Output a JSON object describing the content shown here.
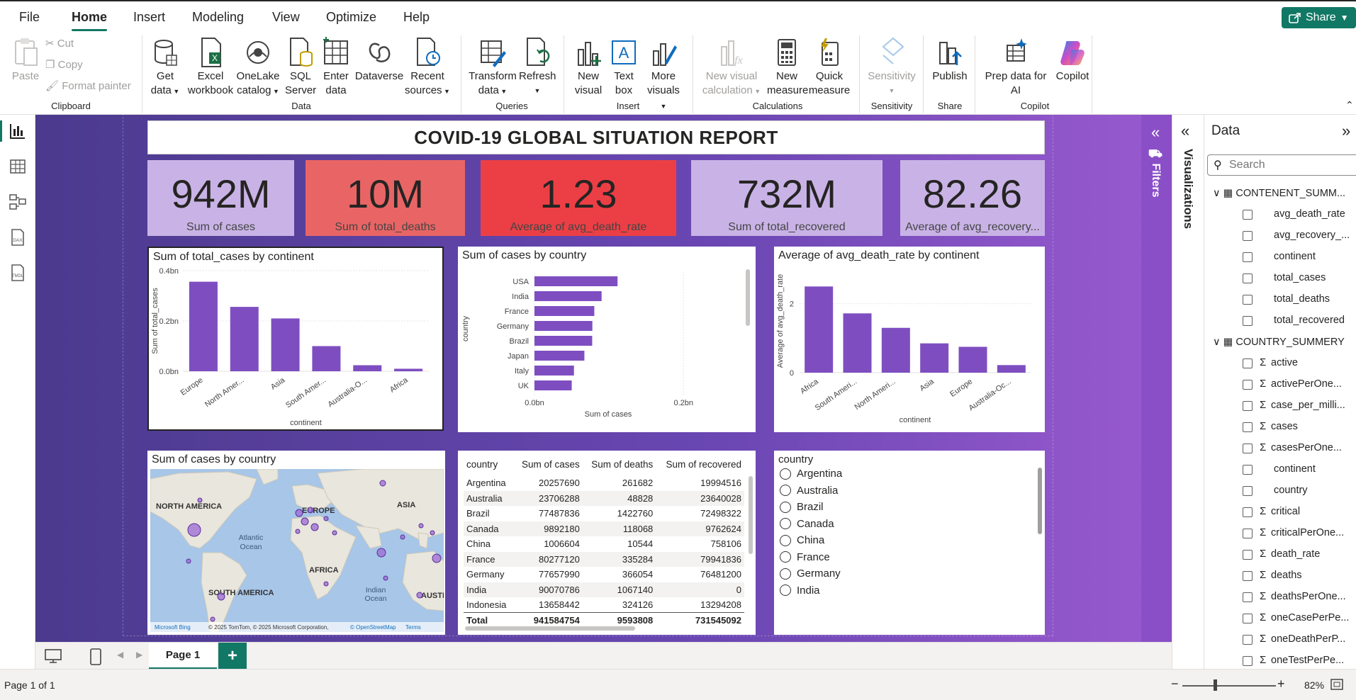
{
  "menu": {
    "file": "File",
    "home": "Home",
    "insert": "Insert",
    "modeling": "Modeling",
    "view": "View",
    "optimize": "Optimize",
    "help": "Help",
    "share": "Share"
  },
  "ribbon": {
    "clipboard": {
      "paste": "Paste",
      "cut": "Cut",
      "copy": "Copy",
      "format_painter": "Format painter",
      "group": "Clipboard"
    },
    "data": {
      "get_data_1": "Get",
      "get_data_2": "data",
      "excel_1": "Excel",
      "excel_2": "workbook",
      "onelake_1": "OneLake",
      "onelake_2": "catalog",
      "sql_1": "SQL",
      "sql_2": "Server",
      "enter_1": "Enter",
      "enter_2": "data",
      "dataverse": "Dataverse",
      "recent_1": "Recent",
      "recent_2": "sources",
      "group": "Data"
    },
    "queries": {
      "transform_1": "Transform",
      "transform_2": "data",
      "refresh": "Refresh",
      "group": "Queries"
    },
    "insert": {
      "newvisual_1": "New",
      "newvisual_2": "visual",
      "textbox_1": "Text",
      "textbox_2": "box",
      "more_1": "More",
      "more_2": "visuals",
      "group": "Insert"
    },
    "calculations": {
      "newcalc_1": "New visual",
      "newcalc_2": "calculation",
      "newmeasure_1": "New",
      "newmeasure_2": "measure",
      "quick_1": "Quick",
      "quick_2": "measure",
      "group": "Calculations"
    },
    "sensitivity": {
      "label": "Sensitivity",
      "group": "Sensitivity"
    },
    "share": {
      "publish": "Publish",
      "group": "Share"
    },
    "copilot": {
      "prep_1": "Prep data for",
      "prep_2": "AI",
      "copilot": "Copilot",
      "group": "Copilot"
    }
  },
  "report": {
    "title": "COVID-19 GLOBAL SITUATION REPORT",
    "kpis": [
      {
        "value": "942M",
        "label": "Sum of cases",
        "color": "#c9b3e6"
      },
      {
        "value": "10M",
        "label": "Sum of total_deaths",
        "color": "#e96565"
      },
      {
        "value": "1.23",
        "label": "Average of avg_death_rate",
        "color": "#ec3f45"
      },
      {
        "value": "732M",
        "label": "Sum of total_recovered",
        "color": "#c9b3e6"
      },
      {
        "value": "82.26",
        "label": "Average of avg_recovery...",
        "color": "#c9b3e6"
      }
    ]
  },
  "chart_data": [
    {
      "type": "bar",
      "title": "Sum of total_cases by continent",
      "xlabel": "continent",
      "ylabel": "Sum of total_cases",
      "categories": [
        "Europe",
        "North Amer...",
        "Asia",
        "South Amer...",
        "Australia-O...",
        "Africa"
      ],
      "values": [
        0.356,
        0.256,
        0.21,
        0.1,
        0.024,
        0.01
      ],
      "ylim": [
        0,
        0.4
      ],
      "ticks": [
        "0.0bn",
        "0.2bn",
        "0.4bn"
      ],
      "color": "#7e4ec1"
    },
    {
      "type": "bar",
      "orientation": "horizontal",
      "title": "Sum of cases by country",
      "xlabel": "Sum of cases",
      "ylabel": "country",
      "categories": [
        "USA",
        "India",
        "France",
        "Germany",
        "Brazil",
        "Japan",
        "Italy",
        "UK"
      ],
      "values": [
        0.1115,
        0.0901,
        0.0803,
        0.0777,
        0.0775,
        0.067,
        0.053,
        0.05
      ],
      "xlim": [
        0,
        0.2
      ],
      "ticks": [
        "0.0bn",
        "0.2bn"
      ],
      "color": "#7e4ec1"
    },
    {
      "type": "bar",
      "title": "Average of avg_death_rate by continent",
      "xlabel": "continent",
      "ylabel": "Average of avg_death_rate",
      "categories": [
        "Africa",
        "South Ameri...",
        "North Ameri...",
        "Asia",
        "Europe",
        "Australia-Oc..."
      ],
      "values": [
        2.5,
        1.72,
        1.3,
        0.85,
        0.75,
        0.22
      ],
      "ylim": [
        0,
        3
      ],
      "ticks": [
        "0",
        "2"
      ],
      "color": "#7e4ec1"
    }
  ],
  "map": {
    "title": "Sum of cases by country",
    "labels": {
      "na": "NORTH AMERICA",
      "europe": "EUROPE",
      "asia": "ASIA",
      "africa": "AFRICA",
      "sa": "SOUTH AMERICA",
      "aus": "AUSTI",
      "atlantic_1": "Atlantic",
      "atlantic_2": "Ocean",
      "indian_1": "Indian",
      "indian_2": "Ocean"
    },
    "brand": "Microsoft Bing",
    "copyright": "© 2025 TomTom, © 2025 Microsoft Corporation,",
    "osm": "© OpenStreetMap",
    "terms": "Terms"
  },
  "table": {
    "headers": [
      "country",
      "Sum of cases",
      "Sum of deaths",
      "Sum of recovered"
    ],
    "rows": [
      [
        "Argentina",
        "20257690",
        "261682",
        "19994516"
      ],
      [
        "Australia",
        "23706288",
        "48828",
        "23640028"
      ],
      [
        "Brazil",
        "77487836",
        "1422760",
        "72498322"
      ],
      [
        "Canada",
        "9892180",
        "118068",
        "9762624"
      ],
      [
        "China",
        "1006604",
        "10544",
        "758106"
      ],
      [
        "France",
        "80277120",
        "335284",
        "79941836"
      ],
      [
        "Germany",
        "77657990",
        "366054",
        "76481200"
      ],
      [
        "India",
        "90070786",
        "1067140",
        "0"
      ],
      [
        "Indonesia",
        "13658442",
        "324126",
        "13294208"
      ]
    ],
    "total": [
      "Total",
      "941584754",
      "9593808",
      "731545092"
    ]
  },
  "slicer": {
    "title": "country",
    "items": [
      "Argentina",
      "Australia",
      "Brazil",
      "Canada",
      "China",
      "France",
      "Germany",
      "India"
    ]
  },
  "panes": {
    "filters": "Filters",
    "visualizations": "Visualizations",
    "data_title": "Data",
    "search_placeholder": "Search"
  },
  "data_pane": {
    "tables": [
      {
        "name": "CONTENENT_SUMM...",
        "fields": [
          {
            "name": "avg_death_rate",
            "sigma": false
          },
          {
            "name": "avg_recovery_...",
            "sigma": false
          },
          {
            "name": "continent",
            "sigma": false
          },
          {
            "name": "total_cases",
            "sigma": false
          },
          {
            "name": "total_deaths",
            "sigma": false
          },
          {
            "name": "total_recovered",
            "sigma": false
          }
        ]
      },
      {
        "name": "COUNTRY_SUMMERY",
        "fields": [
          {
            "name": "active",
            "sigma": true
          },
          {
            "name": "activePerOne...",
            "sigma": true
          },
          {
            "name": "case_per_milli...",
            "sigma": true
          },
          {
            "name": "cases",
            "sigma": true
          },
          {
            "name": "casesPerOne...",
            "sigma": true
          },
          {
            "name": "continent",
            "sigma": false
          },
          {
            "name": "country",
            "sigma": false
          },
          {
            "name": "critical",
            "sigma": true
          },
          {
            "name": "criticalPerOne...",
            "sigma": true
          },
          {
            "name": "death_rate",
            "sigma": true
          },
          {
            "name": "deaths",
            "sigma": true
          },
          {
            "name": "deathsPerOne...",
            "sigma": true
          },
          {
            "name": "oneCasePerPe...",
            "sigma": true
          },
          {
            "name": "oneDeathPerP...",
            "sigma": true
          },
          {
            "name": "oneTestPerPe...",
            "sigma": true
          }
        ]
      }
    ]
  },
  "tabs": {
    "page1": "Page 1",
    "add": "+"
  },
  "status": {
    "page": "Page 1 of 1",
    "zoom": "82%",
    "minus": "−",
    "plus": "+"
  }
}
